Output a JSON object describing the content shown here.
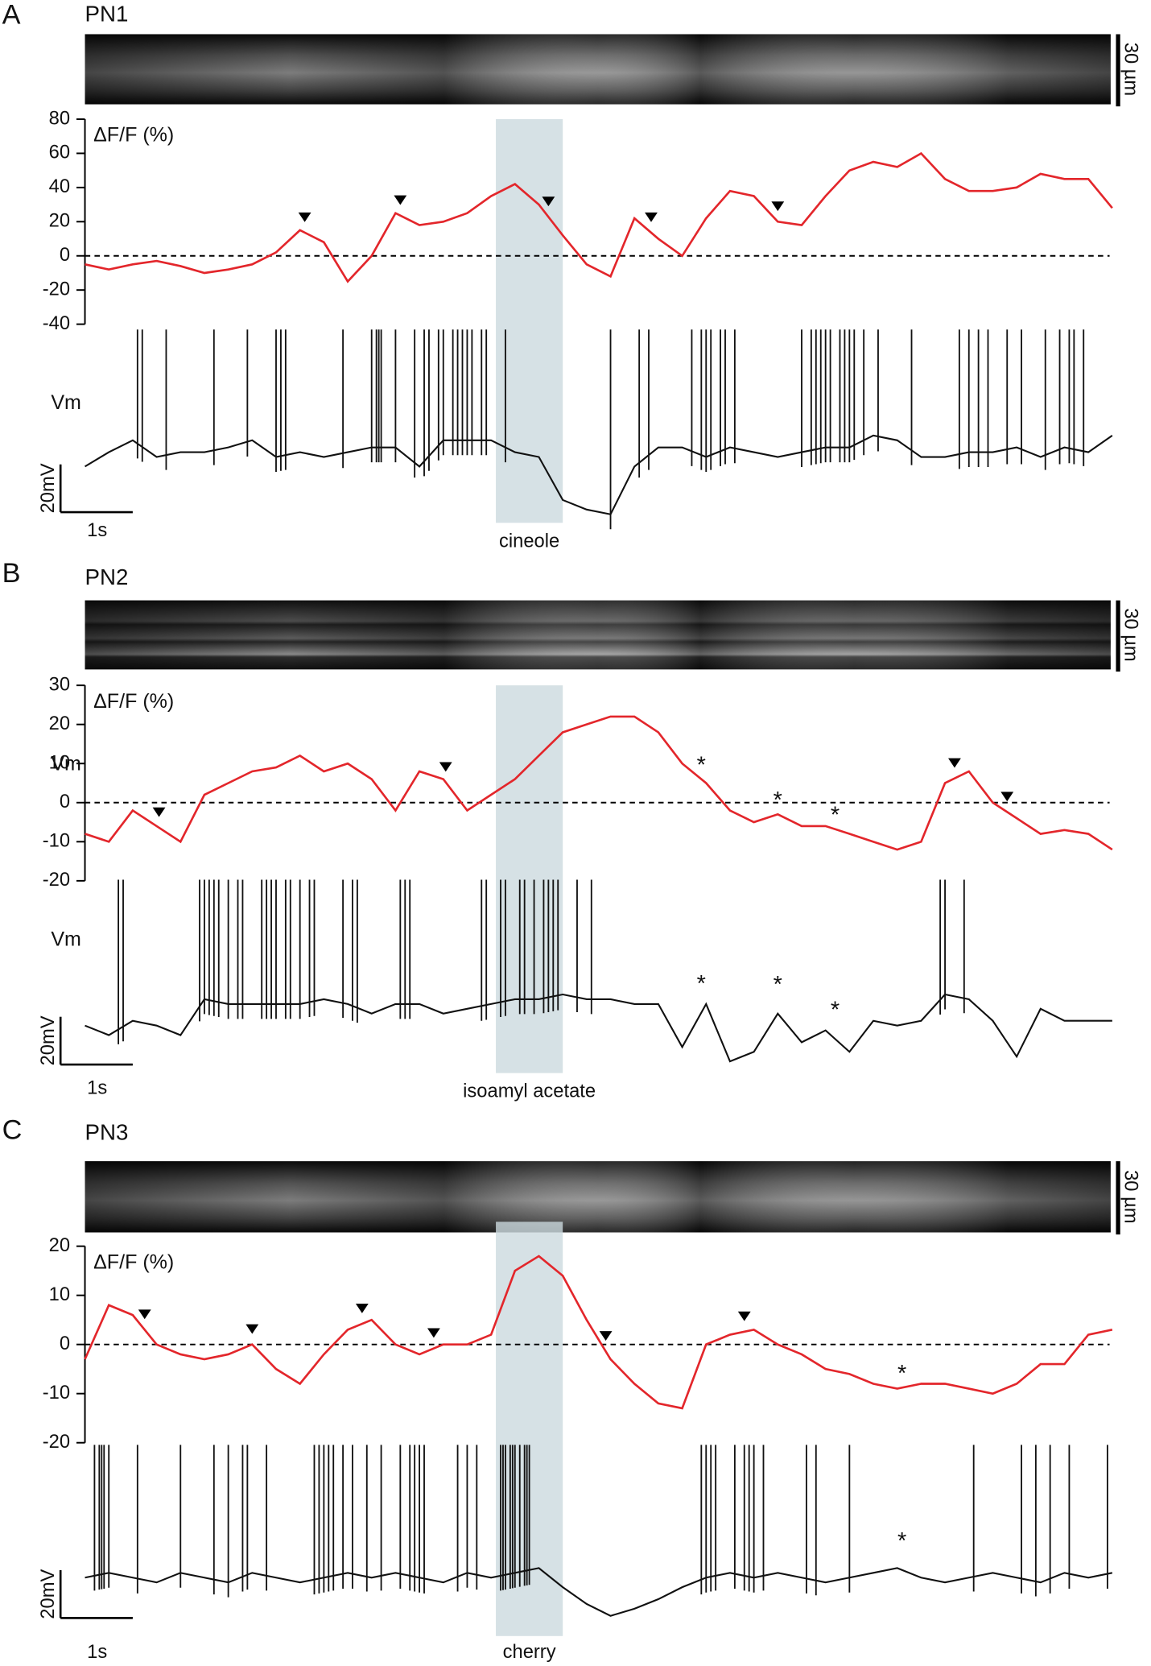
{
  "chart_data": [
    {
      "type": "line",
      "panel": "A",
      "title": "PN1",
      "scale_label": "30 µm",
      "ylabel": "ΔF/F (%)",
      "ylim": [
        -40,
        80
      ],
      "yticks": [
        -40,
        -20,
        0,
        20,
        40,
        60,
        80
      ],
      "hline": 0,
      "color": "#e3262b",
      "x": [
        0,
        0.5,
        1,
        1.5,
        2,
        2.5,
        3,
        3.5,
        4,
        4.5,
        5,
        5.5,
        6,
        6.5,
        7,
        7.5,
        8,
        8.5,
        9,
        9.5,
        10,
        10.5,
        11,
        11.5,
        12,
        12.5,
        13,
        13.5,
        14,
        14.5,
        15,
        15.5,
        16,
        16.5,
        17,
        17.5,
        18,
        18.5,
        19,
        19.5,
        20,
        20.5,
        21,
        21.5
      ],
      "values": [
        -5,
        -8,
        -5,
        -3,
        -6,
        -10,
        -8,
        -5,
        2,
        15,
        8,
        -15,
        0,
        25,
        18,
        20,
        25,
        35,
        42,
        30,
        12,
        -5,
        -12,
        22,
        10,
        0,
        22,
        38,
        35,
        20,
        18,
        35,
        50,
        55,
        52,
        60,
        45,
        38,
        38,
        40,
        48,
        45,
        45,
        28
      ],
      "stimulus": {
        "label": "cineole",
        "range": [
          8.6,
          10
        ]
      },
      "vm": {
        "label": "Vm",
        "color": "#111111",
        "values": [
          -4,
          2,
          7,
          0,
          2,
          2,
          4,
          7,
          0,
          2,
          0,
          2,
          4,
          4,
          -4,
          7,
          7,
          7,
          2,
          0,
          -18,
          -22,
          -24,
          -4,
          4,
          4,
          0,
          4,
          2,
          0,
          2,
          4,
          4,
          9,
          7,
          0,
          0,
          2,
          2,
          4,
          0,
          4,
          2,
          9
        ],
        "spikes": [
          1.1,
          1.2,
          1.7,
          2.7,
          3.4,
          4.0,
          4.1,
          4.2,
          5.4,
          6.0,
          6.1,
          6.15,
          6.2,
          6.5,
          6.9,
          7.1,
          7.2,
          7.4,
          7.5,
          7.7,
          7.8,
          7.9,
          8.0,
          8.1,
          8.3,
          8.4,
          8.8,
          11.0,
          11.6,
          11.8,
          12.7,
          12.9,
          13.0,
          13.1,
          13.3,
          13.4,
          13.6,
          15.0,
          15.2,
          15.3,
          15.4,
          15.5,
          15.6,
          15.8,
          15.9,
          16.0,
          16.1,
          16.3,
          16.6,
          17.3,
          18.3,
          18.5,
          18.7,
          18.9,
          19.3,
          19.6,
          20.1,
          20.4,
          20.6,
          20.7,
          20.9
        ]
      },
      "scalebars": {
        "voltage": {
          "label": "20mV",
          "value": 20
        },
        "time": {
          "label": "1s",
          "value": 1
        }
      },
      "annotations": []
    },
    {
      "type": "line",
      "panel": "B",
      "title": "PN2",
      "scale_label": "30 µm",
      "ylabel": "ΔF/F (%)",
      "ylim": [
        -20,
        30
      ],
      "yticks": [
        -20,
        -10,
        0,
        10,
        20,
        30
      ],
      "hline": 0,
      "color": "#e3262b",
      "x": [
        0,
        0.5,
        1,
        1.5,
        2,
        2.5,
        3,
        3.5,
        4,
        4.5,
        5,
        5.5,
        6,
        6.5,
        7,
        7.5,
        8,
        8.5,
        9,
        9.5,
        10,
        10.5,
        11,
        11.5,
        12,
        12.5,
        13,
        13.5,
        14,
        14.5,
        15,
        15.5,
        16,
        16.5,
        17,
        17.5,
        18,
        18.5,
        19,
        19.5,
        20,
        20.5,
        21,
        21.5
      ],
      "values": [
        -8,
        -10,
        -2,
        -6,
        -10,
        2,
        5,
        8,
        9,
        12,
        8,
        10,
        6,
        -2,
        8,
        6,
        -2,
        2,
        6,
        12,
        18,
        20,
        22,
        22,
        18,
        10,
        5,
        -2,
        -5,
        -3,
        -6,
        -6,
        -8,
        -10,
        -12,
        -10,
        5,
        8,
        0,
        -4,
        -8,
        -7,
        -8,
        -12
      ],
      "stimulus": {
        "label": "isoamyl acetate",
        "range": [
          8.6,
          10
        ]
      },
      "vm": {
        "label": "Vm",
        "color": "#111111",
        "values": [
          -9,
          -13,
          -7,
          -9,
          -13,
          2,
          0,
          0,
          0,
          0,
          2,
          0,
          -4,
          0,
          0,
          -4,
          -2,
          0,
          2,
          2,
          4,
          2,
          2,
          0,
          0,
          -18,
          0,
          -24,
          -20,
          -4,
          -16,
          -11,
          -20,
          -7,
          -9,
          -7,
          4,
          2,
          -7,
          -22,
          -2,
          -7,
          -7,
          -7
        ],
        "spikes": [
          0.7,
          0.8,
          2.4,
          2.5,
          2.6,
          2.7,
          2.8,
          3.0,
          3.2,
          3.3,
          3.7,
          3.8,
          3.9,
          4.0,
          4.2,
          4.3,
          4.5,
          4.7,
          4.8,
          5.4,
          5.6,
          5.7,
          6.6,
          6.7,
          6.8,
          8.3,
          8.4,
          8.7,
          8.8,
          9.1,
          9.2,
          9.4,
          9.6,
          9.7,
          9.8,
          9.9,
          10.3,
          10.6,
          17.9,
          18.0,
          18.4
        ]
      },
      "scalebars": {
        "voltage": {
          "label": "20mV",
          "value": 20
        },
        "time": {
          "label": "1s",
          "value": 1
        }
      },
      "annotations": [
        "*",
        "*",
        "*",
        "*",
        "*",
        "*"
      ]
    },
    {
      "type": "line",
      "panel": "C",
      "title": "PN3",
      "scale_label": "30 µm",
      "ylabel": "ΔF/F (%)",
      "ylim": [
        -20,
        20
      ],
      "yticks": [
        -20,
        -10,
        0,
        10,
        20
      ],
      "hline": 0,
      "color": "#e3262b",
      "x": [
        0,
        0.5,
        1,
        1.5,
        2,
        2.5,
        3,
        3.5,
        4,
        4.5,
        5,
        5.5,
        6,
        6.5,
        7,
        7.5,
        8,
        8.5,
        9,
        9.5,
        10,
        10.5,
        11,
        11.5,
        12,
        12.5,
        13,
        13.5,
        14,
        14.5,
        15,
        15.5,
        16,
        16.5,
        17,
        17.5,
        18,
        18.5,
        19,
        19.5,
        20,
        20.5,
        21,
        21.5
      ],
      "values": [
        -3,
        8,
        6,
        0,
        -2,
        -3,
        -2,
        0,
        -5,
        -8,
        -2,
        3,
        5,
        0,
        -2,
        0,
        0,
        2,
        15,
        18,
        14,
        5,
        -3,
        -8,
        -12,
        -13,
        0,
        2,
        3,
        0,
        -2,
        -5,
        -6,
        -8,
        -9,
        -8,
        -8,
        -9,
        -10,
        -8,
        -4,
        -4,
        2,
        3
      ],
      "stimulus": {
        "label": "cherry",
        "range": [
          8.6,
          10
        ]
      },
      "vm": {
        "label": "Vm",
        "color": "#111111",
        "values": [
          0,
          2,
          0,
          -2,
          2,
          0,
          -2,
          2,
          0,
          -2,
          0,
          2,
          0,
          2,
          0,
          -2,
          2,
          0,
          2,
          4,
          -4,
          -11,
          -16,
          -13,
          -9,
          -4,
          0,
          2,
          0,
          2,
          0,
          -2,
          0,
          2,
          4,
          0,
          -2,
          0,
          2,
          0,
          -2,
          2,
          0,
          2
        ],
        "spikes": [
          0.2,
          0.3,
          0.35,
          0.4,
          0.5,
          1.1,
          2.0,
          2.7,
          3.0,
          3.3,
          3.4,
          3.8,
          4.8,
          4.9,
          5.0,
          5.1,
          5.2,
          5.4,
          5.6,
          5.9,
          6.2,
          6.6,
          6.8,
          6.9,
          7.0,
          7.1,
          7.8,
          8.0,
          8.2,
          8.7,
          8.75,
          8.8,
          8.9,
          8.95,
          9.0,
          9.1,
          9.2,
          9.25,
          9.3,
          12.9,
          13.0,
          13.1,
          13.2,
          13.6,
          13.8,
          13.9,
          14.0,
          14.2,
          15.1,
          15.3,
          16.0,
          18.6,
          19.6,
          19.9,
          20.2,
          20.6,
          21.4
        ]
      },
      "scalebars": {
        "voltage": {
          "label": "20mV",
          "value": 20
        },
        "time": {
          "label": "1s",
          "value": 1
        }
      },
      "annotations": [
        "*",
        "*"
      ]
    }
  ]
}
